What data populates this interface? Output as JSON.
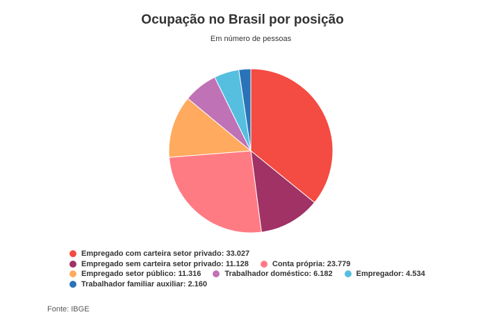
{
  "title": "Ocupação no Brasil por posição",
  "subtitle": "Em número de pessoas",
  "source": "Fonte: IBGE",
  "chart_data": {
    "type": "pie",
    "title": "Ocupação no Brasil por posição",
    "subtitle": "Em número de pessoas",
    "slices": [
      {
        "label": "Empregado com carteira setor privado",
        "value": 33027,
        "display": "33.027",
        "color": "#f44b42"
      },
      {
        "label": "Empregado sem carteira setor privado",
        "value": 11128,
        "display": "11.128",
        "color": "#a03265"
      },
      {
        "label": "Conta própria",
        "value": 23779,
        "display": "23.779",
        "color": "#ff7b84"
      },
      {
        "label": "Empregado setor público",
        "value": 11316,
        "display": "11.316",
        "color": "#ffaa5e"
      },
      {
        "label": "Trabalhador doméstico",
        "value": 6182,
        "display": "6.182",
        "color": "#bf72b6"
      },
      {
        "label": "Empregador",
        "value": 4534,
        "display": "4.534",
        "color": "#56bfe0"
      },
      {
        "label": "Trabalhador familiar auxiliar",
        "value": 2160,
        "display": "2.160",
        "color": "#2a73b8"
      }
    ],
    "legend_position": "bottom"
  }
}
